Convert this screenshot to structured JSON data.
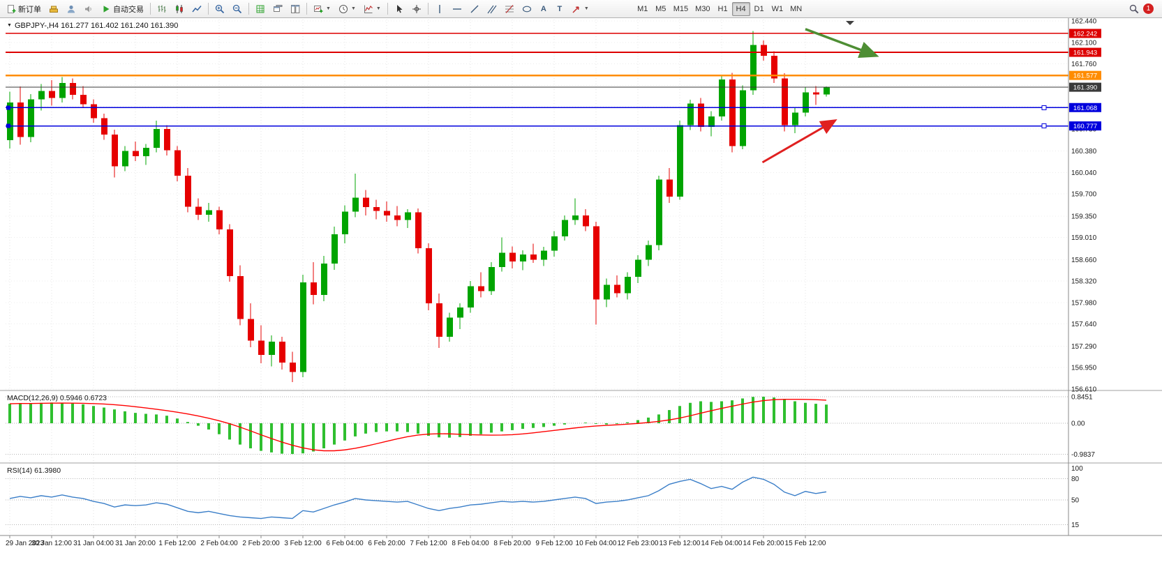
{
  "window": {
    "title_overlay": "GBPJPY-,H4 161.277 161.402 161.240 161.390"
  },
  "toolbar": {
    "new_order_label": "新订单",
    "auto_trading_label": "自动交易",
    "text_tool_label": "A",
    "label_tool_label": "T",
    "timeframes": [
      "M1",
      "M5",
      "M15",
      "M30",
      "H1",
      "H4",
      "D1",
      "W1",
      "MN"
    ],
    "active_timeframe": "H4",
    "notification_count": "1"
  },
  "chart_data": {
    "type": "candlestick",
    "symbol": "GBPJPY-",
    "timeframe": "H4",
    "ohlc_display": {
      "open": "161.277",
      "high": "161.402",
      "low": "161.240",
      "close": "161.390"
    },
    "price_axis": {
      "min": 156.61,
      "max": 162.44,
      "ticks": [
        162.44,
        162.1,
        161.76,
        161.42,
        161.08,
        160.73,
        160.38,
        160.04,
        159.7,
        159.35,
        159.01,
        158.66,
        158.32,
        157.98,
        157.64,
        157.29,
        156.95,
        156.61
      ]
    },
    "time_label_step": 4,
    "time_labels": [
      "29 Jan 2023",
      "30 Jan 12:00",
      "31 Jan 04:00",
      "31 Jan 20:00",
      "1 Feb 12:00",
      "2 Feb 04:00",
      "2 Feb 20:00",
      "3 Feb 12:00",
      "6 Feb 04:00",
      "6 Feb 20:00",
      "7 Feb 12:00",
      "8 Feb 04:00",
      "8 Feb 20:00",
      "9 Feb 12:00",
      "10 Feb 04:00",
      "12 Feb 23:00",
      "13 Feb 12:00",
      "14 Feb 04:00",
      "14 Feb 20:00",
      "15 Feb 12:00"
    ],
    "candles": [
      [
        160.55,
        161.32,
        160.42,
        161.15
      ],
      [
        161.15,
        161.4,
        160.48,
        160.6
      ],
      [
        160.6,
        161.28,
        160.52,
        161.2
      ],
      [
        161.2,
        161.44,
        161.02,
        161.33
      ],
      [
        161.33,
        161.5,
        161.1,
        161.22
      ],
      [
        161.22,
        161.55,
        161.15,
        161.46
      ],
      [
        161.46,
        161.53,
        161.2,
        161.27
      ],
      [
        161.27,
        161.41,
        161.06,
        161.12
      ],
      [
        161.12,
        161.2,
        160.83,
        160.9
      ],
      [
        160.9,
        160.97,
        160.56,
        160.64
      ],
      [
        160.64,
        160.72,
        159.96,
        160.14
      ],
      [
        160.14,
        160.46,
        160.06,
        160.38
      ],
      [
        160.38,
        160.53,
        160.22,
        160.3
      ],
      [
        160.3,
        160.49,
        160.16,
        160.43
      ],
      [
        160.43,
        160.86,
        160.36,
        160.73
      ],
      [
        160.73,
        160.79,
        160.31,
        160.39
      ],
      [
        160.39,
        160.46,
        159.9,
        159.99
      ],
      [
        159.99,
        160.11,
        159.41,
        159.5
      ],
      [
        159.5,
        159.63,
        159.29,
        159.37
      ],
      [
        159.37,
        159.56,
        159.26,
        159.44
      ],
      [
        159.44,
        159.5,
        159.06,
        159.14
      ],
      [
        159.14,
        159.22,
        158.31,
        158.4
      ],
      [
        158.4,
        158.57,
        157.62,
        157.72
      ],
      [
        157.72,
        157.97,
        157.27,
        157.38
      ],
      [
        157.38,
        157.62,
        157.02,
        157.15
      ],
      [
        157.15,
        157.46,
        156.97,
        157.36
      ],
      [
        157.36,
        157.44,
        156.92,
        157.03
      ],
      [
        157.03,
        157.2,
        156.72,
        156.88
      ],
      [
        156.88,
        158.42,
        156.8,
        158.3
      ],
      [
        158.3,
        158.62,
        157.95,
        158.1
      ],
      [
        158.1,
        158.72,
        158.0,
        158.6
      ],
      [
        158.6,
        159.18,
        158.5,
        159.06
      ],
      [
        159.06,
        159.52,
        158.92,
        159.42
      ],
      [
        159.42,
        160.02,
        159.33,
        159.64
      ],
      [
        159.64,
        159.76,
        159.36,
        159.49
      ],
      [
        159.49,
        159.61,
        159.3,
        159.43
      ],
      [
        159.43,
        159.58,
        159.26,
        159.36
      ],
      [
        159.36,
        159.51,
        159.19,
        159.29
      ],
      [
        159.29,
        159.46,
        159.16,
        159.41
      ],
      [
        159.41,
        159.47,
        158.76,
        158.84
      ],
      [
        158.84,
        158.92,
        157.86,
        157.97
      ],
      [
        157.97,
        158.12,
        157.26,
        157.44
      ],
      [
        157.44,
        157.82,
        157.36,
        157.74
      ],
      [
        157.74,
        157.97,
        157.56,
        157.9
      ],
      [
        157.9,
        158.32,
        157.82,
        158.24
      ],
      [
        158.24,
        158.46,
        158.06,
        158.16
      ],
      [
        158.16,
        158.62,
        158.1,
        158.54
      ],
      [
        158.54,
        159.01,
        158.47,
        158.77
      ],
      [
        158.77,
        158.87,
        158.52,
        158.63
      ],
      [
        158.63,
        158.81,
        158.49,
        158.74
      ],
      [
        158.74,
        158.91,
        158.61,
        158.66
      ],
      [
        158.66,
        158.86,
        158.56,
        158.8
      ],
      [
        158.8,
        159.11,
        158.71,
        159.03
      ],
      [
        159.03,
        159.36,
        158.96,
        159.29
      ],
      [
        159.29,
        159.63,
        159.21,
        159.36
      ],
      [
        159.36,
        159.46,
        159.11,
        159.19
      ],
      [
        159.19,
        159.26,
        157.63,
        158.03
      ],
      [
        158.03,
        158.36,
        157.91,
        158.26
      ],
      [
        158.26,
        158.41,
        158.06,
        158.13
      ],
      [
        158.13,
        158.46,
        158.03,
        158.39
      ],
      [
        158.39,
        158.73,
        158.29,
        158.66
      ],
      [
        158.66,
        158.96,
        158.56,
        158.89
      ],
      [
        158.89,
        159.99,
        158.81,
        159.93
      ],
      [
        159.93,
        160.11,
        159.56,
        159.66
      ],
      [
        159.66,
        160.86,
        159.61,
        160.79
      ],
      [
        160.79,
        161.19,
        160.71,
        161.13
      ],
      [
        161.13,
        161.22,
        160.69,
        160.76
      ],
      [
        160.76,
        161.01,
        160.61,
        160.93
      ],
      [
        160.93,
        161.59,
        160.86,
        161.51
      ],
      [
        161.51,
        161.62,
        160.36,
        160.46
      ],
      [
        160.46,
        161.42,
        160.41,
        161.34
      ],
      [
        161.34,
        162.28,
        161.27,
        162.06
      ],
      [
        162.06,
        162.13,
        161.81,
        161.89
      ],
      [
        161.89,
        161.96,
        161.46,
        161.53
      ],
      [
        161.53,
        161.61,
        160.69,
        160.79
      ],
      [
        160.79,
        161.06,
        160.66,
        160.99
      ],
      [
        160.99,
        161.39,
        160.93,
        161.31
      ],
      [
        161.31,
        161.41,
        161.11,
        161.277
      ],
      [
        161.277,
        161.402,
        161.24,
        161.39
      ]
    ],
    "bid_line": {
      "price": 161.39,
      "color": "#3a3a3a",
      "badge_color": "#3a3a3a"
    },
    "hlines": [
      {
        "price": 162.242,
        "color": "#dd0000",
        "width": 1.6,
        "handles": false
      },
      {
        "price": 161.943,
        "color": "#dd0000",
        "width": 1.6,
        "handles": false
      },
      {
        "price": 161.577,
        "color": "#ff8c00",
        "width": 2.4,
        "handles": false
      },
      {
        "price": 161.068,
        "color": "#0000dd",
        "width": 1.6,
        "handles": true
      },
      {
        "price": 160.777,
        "color": "#0000dd",
        "width": 1.6,
        "handles": true
      }
    ],
    "arrows": [
      {
        "from_idx": 76.0,
        "from_price": 162.31,
        "to_idx": 82.6,
        "to_price": 161.9,
        "color": "#4e8e34",
        "width": 3.5
      },
      {
        "from_idx": 71.9,
        "from_price": 160.2,
        "to_idx": 78.7,
        "to_price": 160.85,
        "color": "#e02020",
        "width": 3.0
      }
    ],
    "colors": {
      "up": "#00a400",
      "down": "#e60000",
      "macd_bar": "#2fbf2f",
      "macd_signal": "#ff0000",
      "rsi_line": "#3a7ec8",
      "grid": "#e3e3e3",
      "axis_text": "#1a1a1a"
    },
    "macd": {
      "label": "MACD(12,26,9) 0.5946 0.6723",
      "signal_sma_period": 9,
      "axis_tick_values": [
        0.8451,
        0,
        -0.9837
      ],
      "axis_tick_labels": [
        "0.8451",
        "0.00",
        "-0.9837"
      ],
      "values": [
        0.62,
        0.64,
        0.63,
        0.65,
        0.66,
        0.65,
        0.63,
        0.6,
        0.55,
        0.5,
        0.44,
        0.38,
        0.33,
        0.3,
        0.28,
        0.24,
        0.15,
        0.04,
        -0.08,
        -0.2,
        -0.35,
        -0.52,
        -0.68,
        -0.8,
        -0.88,
        -0.93,
        -0.97,
        -0.98,
        -0.96,
        -0.9,
        -0.8,
        -0.68,
        -0.55,
        -0.42,
        -0.33,
        -0.28,
        -0.26,
        -0.26,
        -0.28,
        -0.33,
        -0.4,
        -0.45,
        -0.46,
        -0.44,
        -0.4,
        -0.35,
        -0.3,
        -0.26,
        -0.22,
        -0.18,
        -0.15,
        -0.12,
        -0.08,
        -0.04,
        0.0,
        0.02,
        -0.02,
        -0.04,
        -0.02,
        0.03,
        0.1,
        0.18,
        0.28,
        0.42,
        0.55,
        0.65,
        0.7,
        0.68,
        0.7,
        0.73,
        0.79,
        0.84,
        0.845,
        0.82,
        0.76,
        0.7,
        0.65,
        0.62,
        0.5946
      ]
    },
    "rsi": {
      "label": "RSI(14) 61.3980",
      "levels": [
        80,
        50,
        15
      ],
      "axis_labels": [
        100,
        80,
        50,
        15
      ],
      "range": [
        0,
        100
      ],
      "values": [
        52,
        55,
        53,
        56,
        54,
        57,
        54,
        52,
        48,
        45,
        40,
        43,
        42,
        43,
        46,
        44,
        39,
        34,
        32,
        34,
        31,
        28,
        26,
        25,
        24,
        26,
        25,
        24,
        35,
        33,
        38,
        43,
        47,
        52,
        50,
        49,
        48,
        47,
        48,
        43,
        38,
        35,
        38,
        40,
        43,
        44,
        46,
        48,
        47,
        48,
        47,
        48,
        50,
        52,
        54,
        52,
        45,
        47,
        48,
        50,
        53,
        56,
        63,
        72,
        76,
        79,
        73,
        66,
        69,
        65,
        75,
        82,
        79,
        72,
        61,
        56,
        62,
        59,
        61.4
      ]
    }
  }
}
